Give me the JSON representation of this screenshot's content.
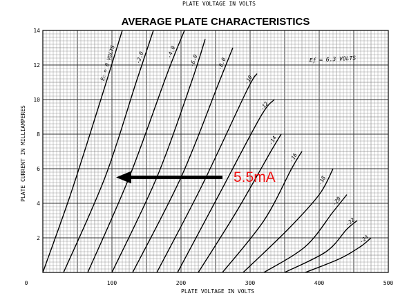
{
  "chart_data": {
    "type": "line",
    "top_caption": "PLATE VOLTAGE IN VOLTS",
    "title": "AVERAGE PLATE CHARACTERISTICS",
    "xlabel": "PLATE VOLTAGE IN VOLTS",
    "ylabel": "PLATE CURRENT IN MILLIAMPERES",
    "xlim": [
      0,
      500
    ],
    "ylim": [
      0,
      14
    ],
    "x_ticks": [
      "0",
      "100",
      "200",
      "300",
      "400",
      "500"
    ],
    "y_ticks": [
      "2",
      "4",
      "6",
      "8",
      "10",
      "12",
      "14"
    ],
    "grid": true,
    "annotation": {
      "text": "Eƒ = 6.3 VOLTS",
      "color": "#000000"
    },
    "marker": {
      "label": "5.5mA",
      "y": 5.5,
      "x_start": 260,
      "x_end": 110,
      "color": "#ee1111",
      "arrow_color": "#000000"
    },
    "series": [
      {
        "name": "Ec = 0 VOLTS",
        "label_text": "Eᴄ = 0 VOLTS",
        "x": [
          0,
          40,
          80,
          115
        ],
        "y": [
          0,
          4.5,
          9.5,
          14
        ]
      },
      {
        "name": "-2.0",
        "label_text": "-2.0",
        "x": [
          30,
          90,
          135,
          160
        ],
        "y": [
          0,
          5.5,
          11,
          14
        ]
      },
      {
        "name": "-4.0",
        "label_text": "-4.0",
        "x": [
          65,
          125,
          180,
          205
        ],
        "y": [
          0,
          5.5,
          11.5,
          14
        ]
      },
      {
        "name": "-6.0",
        "label_text": "-6.0",
        "x": [
          100,
          165,
          215,
          235
        ],
        "y": [
          0,
          5.5,
          11,
          13.5
        ]
      },
      {
        "name": "-8.0",
        "label_text": "-8.0",
        "x": [
          130,
          200,
          255,
          275
        ],
        "y": [
          0,
          5.5,
          11,
          13
        ]
      },
      {
        "name": "-10",
        "label_text": "-10",
        "x": [
          165,
          230,
          295,
          310
        ],
        "y": [
          0,
          5,
          10.5,
          11.5
        ]
      },
      {
        "name": "-12",
        "label_text": "-12",
        "x": [
          195,
          255,
          315,
          335
        ],
        "y": [
          0,
          4.5,
          9,
          10
        ]
      },
      {
        "name": "-14",
        "label_text": "-14",
        "x": [
          225,
          280,
          330,
          345
        ],
        "y": [
          0,
          3.5,
          7,
          8
        ]
      },
      {
        "name": "-16",
        "label_text": "-16",
        "x": [
          260,
          320,
          360,
          375
        ],
        "y": [
          0,
          3,
          6,
          7
        ]
      },
      {
        "name": "-18",
        "label_text": "-18",
        "x": [
          290,
          355,
          400,
          420
        ],
        "y": [
          0,
          2.5,
          4.5,
          6
        ]
      },
      {
        "name": "-20",
        "label_text": "-20",
        "x": [
          320,
          380,
          420,
          440
        ],
        "y": [
          0,
          1.5,
          3.5,
          4.5
        ]
      },
      {
        "name": "-22",
        "label_text": "-22",
        "x": [
          350,
          410,
          440,
          455
        ],
        "y": [
          0,
          1.2,
          2.5,
          3
        ]
      },
      {
        "name": "-24",
        "label_text": "-24",
        "x": [
          380,
          430,
          460,
          475
        ],
        "y": [
          0,
          0.8,
          1.5,
          2
        ]
      }
    ]
  }
}
